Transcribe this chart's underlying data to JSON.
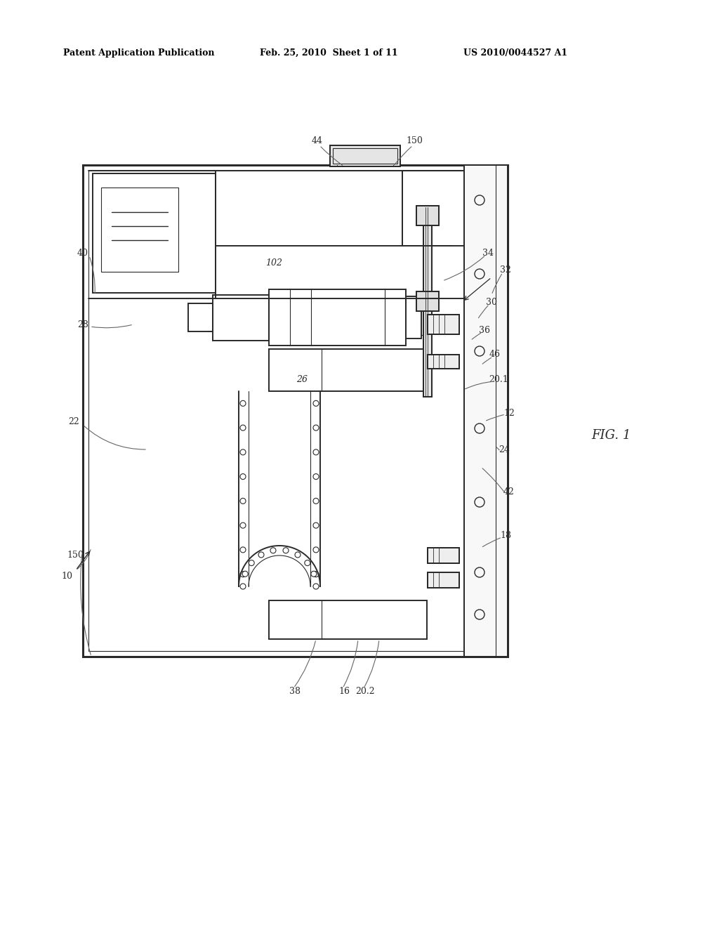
{
  "bg_color": "#ffffff",
  "lc": "#2a2a2a",
  "header": {
    "left": "Patent Application Publication",
    "center": "Feb. 25, 2010  Sheet 1 of 11",
    "right": "US 2010/0044527 A1"
  },
  "fig_label": "FIG. 1"
}
